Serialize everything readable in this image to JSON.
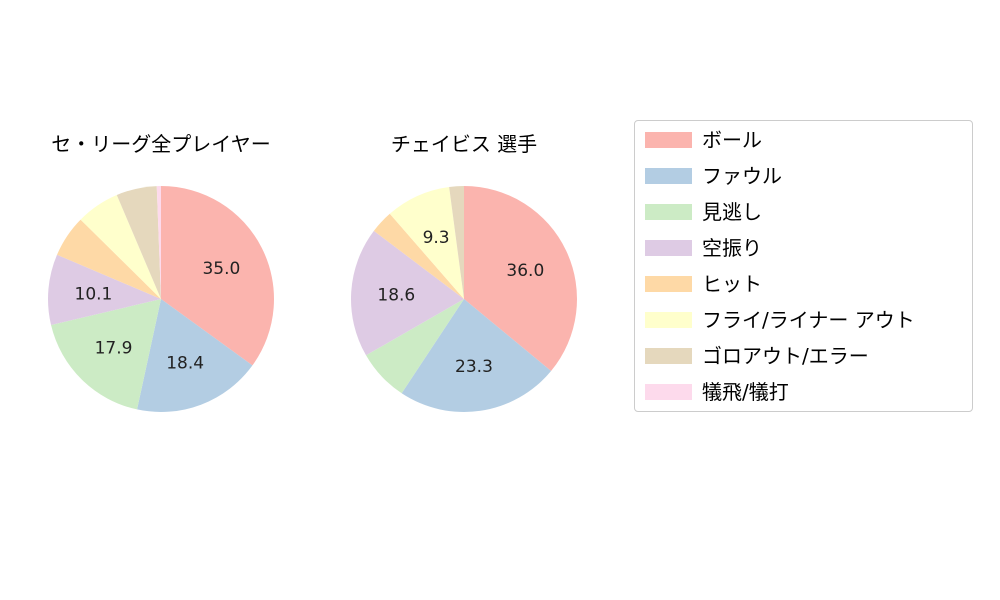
{
  "chart_data": [
    {
      "type": "pie",
      "title": "セ・リーグ全プレイヤー",
      "categories": [
        "ボール",
        "ファウル",
        "見逃し",
        "空振り",
        "ヒット",
        "フライ/ライナー アウト",
        "ゴロアウト/エラー",
        "犠飛/犠打"
      ],
      "values": [
        35.0,
        18.4,
        17.9,
        10.1,
        6.0,
        6.2,
        5.8,
        0.6
      ],
      "labels_shown": [
        "35.0",
        "18.4",
        "17.9",
        "10.1",
        "",
        "",
        "",
        ""
      ],
      "start_angle": 90,
      "direction": "clockwise"
    },
    {
      "type": "pie",
      "title": "チェイビス  選手",
      "categories": [
        "ボール",
        "ファウル",
        "見逃し",
        "空振り",
        "ヒット",
        "フライ/ライナー アウト",
        "ゴロアウト/エラー",
        "犠飛/犠打"
      ],
      "values": [
        36.0,
        23.3,
        7.4,
        18.6,
        3.3,
        9.3,
        2.1,
        0.0
      ],
      "labels_shown": [
        "36.0",
        "23.3",
        "",
        "18.6",
        "",
        "9.3",
        "",
        ""
      ],
      "start_angle": 90,
      "direction": "clockwise"
    }
  ],
  "colors": [
    "#fbb4ae",
    "#b3cde3",
    "#ccebc5",
    "#decbe4",
    "#fed9a6",
    "#ffffcc",
    "#e5d8bd",
    "#fddaec"
  ],
  "legend": {
    "position": "right",
    "items": [
      {
        "label": "ボール",
        "color": "#fbb4ae"
      },
      {
        "label": "ファウル",
        "color": "#b3cde3"
      },
      {
        "label": "見逃し",
        "color": "#ccebc5"
      },
      {
        "label": "空振り",
        "color": "#decbe4"
      },
      {
        "label": "ヒット",
        "color": "#fed9a6"
      },
      {
        "label": "フライ/ライナー アウト",
        "color": "#ffffcc"
      },
      {
        "label": "ゴロアウト/エラー",
        "color": "#e5d8bd"
      },
      {
        "label": "犠飛/犠打",
        "color": "#fddaec"
      }
    ]
  },
  "titles": {
    "left": "セ・リーグ全プレイヤー",
    "right": "チェイビス  選手"
  }
}
